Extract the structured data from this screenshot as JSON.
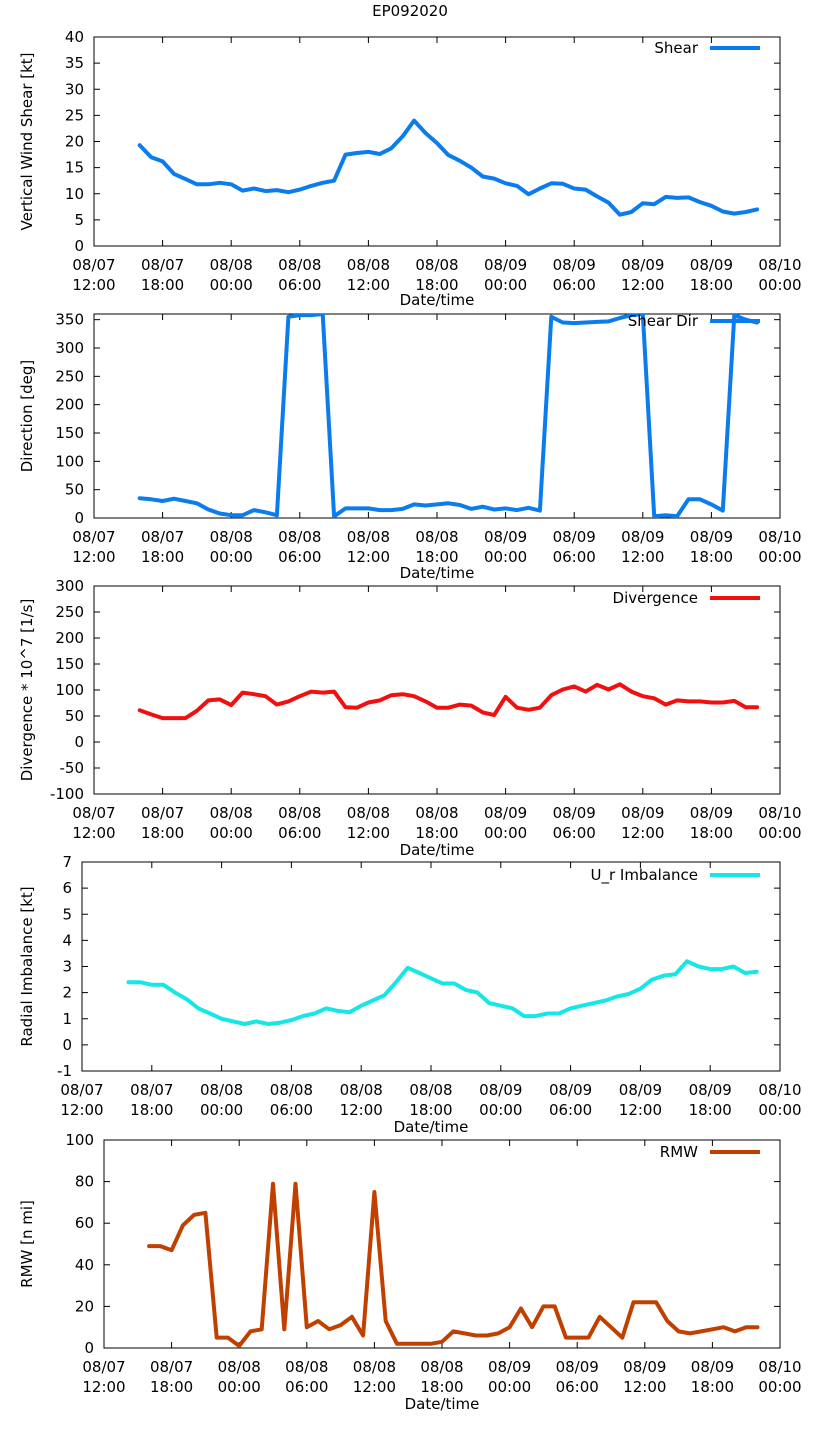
{
  "figure": {
    "title": "EP092020"
  },
  "chart_data": [
    {
      "type": "line",
      "title": "EP092020",
      "xlabel": "Date/time",
      "ylabel": "Vertical Wind Shear [kt]",
      "xlim": [
        0,
        60
      ],
      "ylim": [
        0,
        40
      ],
      "yticks": [
        0,
        5,
        10,
        15,
        20,
        25,
        30,
        35,
        40
      ],
      "xticks": [
        {
          "t": 0,
          "l1": "08/07",
          "l2": "12:00"
        },
        {
          "t": 6,
          "l1": "08/07",
          "l2": "18:00"
        },
        {
          "t": 12,
          "l1": "08/08",
          "l2": "00:00"
        },
        {
          "t": 18,
          "l1": "08/08",
          "l2": "06:00"
        },
        {
          "t": 24,
          "l1": "08/08",
          "l2": "12:00"
        },
        {
          "t": 30,
          "l1": "08/08",
          "l2": "18:00"
        },
        {
          "t": 36,
          "l1": "08/09",
          "l2": "00:00"
        },
        {
          "t": 42,
          "l1": "08/09",
          "l2": "06:00"
        },
        {
          "t": 48,
          "l1": "08/09",
          "l2": "12:00"
        },
        {
          "t": 54,
          "l1": "08/09",
          "l2": "18:00"
        },
        {
          "t": 60,
          "l1": "08/10",
          "l2": "00:00"
        }
      ],
      "legend": "top-right",
      "series": [
        {
          "name": "Shear",
          "color": "#0a7cee",
          "x": [
            4,
            5,
            6,
            7,
            8,
            9,
            10,
            11,
            12,
            13,
            14,
            15,
            16,
            17,
            18,
            19,
            20,
            21,
            22,
            23,
            24,
            25,
            26,
            27,
            28,
            29,
            30,
            31,
            32,
            33,
            34,
            35,
            36,
            37,
            38,
            39,
            40,
            41,
            42,
            43,
            44,
            45,
            46,
            47,
            48,
            49,
            50,
            51,
            52,
            53,
            54,
            55,
            56,
            57,
            58
          ],
          "y": [
            19.3,
            17.0,
            16.2,
            13.8,
            12.8,
            11.8,
            11.8,
            12.1,
            11.8,
            10.6,
            11.0,
            10.5,
            10.7,
            10.3,
            10.8,
            11.5,
            12.1,
            12.5,
            17.5,
            17.8,
            18.0,
            17.6,
            18.7,
            21.0,
            24.0,
            21.6,
            19.7,
            17.4,
            16.3,
            15.0,
            13.3,
            12.9,
            12.0,
            11.5,
            9.9,
            11.0,
            12.0,
            11.9,
            11.0,
            10.8,
            9.5,
            8.3,
            6.0,
            6.5,
            8.2,
            8.0,
            9.4,
            9.2,
            9.3,
            8.4,
            7.7,
            6.6,
            6.2,
            6.5,
            7.0
          ]
        }
      ]
    },
    {
      "type": "line",
      "xlabel": "Date/time",
      "ylabel": "Direction [deg]",
      "xlim": [
        0,
        60
      ],
      "ylim": [
        0,
        360
      ],
      "yticks": [
        0,
        50,
        100,
        150,
        200,
        250,
        300,
        350
      ],
      "xticks": [
        {
          "t": 0,
          "l1": "08/07",
          "l2": "12:00"
        },
        {
          "t": 6,
          "l1": "08/07",
          "l2": "18:00"
        },
        {
          "t": 12,
          "l1": "08/08",
          "l2": "00:00"
        },
        {
          "t": 18,
          "l1": "08/08",
          "l2": "06:00"
        },
        {
          "t": 24,
          "l1": "08/08",
          "l2": "12:00"
        },
        {
          "t": 30,
          "l1": "08/08",
          "l2": "18:00"
        },
        {
          "t": 36,
          "l1": "08/09",
          "l2": "00:00"
        },
        {
          "t": 42,
          "l1": "08/09",
          "l2": "06:00"
        },
        {
          "t": 48,
          "l1": "08/09",
          "l2": "12:00"
        },
        {
          "t": 54,
          "l1": "08/09",
          "l2": "18:00"
        },
        {
          "t": 60,
          "l1": "08/10",
          "l2": "00:00"
        }
      ],
      "legend": "top-right",
      "series": [
        {
          "name": "Shear Dir",
          "color": "#0a7cee",
          "x": [
            4,
            5,
            6,
            7,
            8,
            9,
            10,
            11,
            12,
            13,
            14,
            15,
            16,
            17,
            18,
            19,
            20,
            21,
            22,
            23,
            24,
            25,
            26,
            27,
            28,
            29,
            30,
            31,
            32,
            33,
            34,
            35,
            36,
            37,
            38,
            39,
            40,
            41,
            42,
            43,
            44,
            45,
            46,
            47,
            48,
            49,
            50,
            51,
            52,
            53,
            54,
            55,
            56,
            57,
            58
          ],
          "y": [
            35,
            33,
            30,
            34,
            30,
            26,
            15,
            8,
            5,
            5,
            14,
            10,
            5,
            355,
            358,
            358,
            360,
            3,
            17,
            17,
            17,
            14,
            14,
            16,
            24,
            22,
            24,
            26,
            23,
            16,
            20,
            15,
            17,
            14,
            18,
            13,
            355,
            345,
            344,
            345,
            346,
            347,
            353,
            358,
            360,
            3,
            5,
            3,
            33,
            33,
            24,
            13,
            358,
            350,
            345
          ]
        }
      ]
    },
    {
      "type": "line",
      "xlabel": "Date/time",
      "ylabel": "Divergence * 10^7 [1/s]",
      "xlim": [
        0,
        60
      ],
      "ylim": [
        -100,
        300
      ],
      "yticks": [
        -100,
        -50,
        0,
        50,
        100,
        150,
        200,
        250,
        300
      ],
      "xticks": [
        {
          "t": 0,
          "l1": "08/07",
          "l2": "12:00"
        },
        {
          "t": 6,
          "l1": "08/07",
          "l2": "18:00"
        },
        {
          "t": 12,
          "l1": "08/08",
          "l2": "00:00"
        },
        {
          "t": 18,
          "l1": "08/08",
          "l2": "06:00"
        },
        {
          "t": 24,
          "l1": "08/08",
          "l2": "12:00"
        },
        {
          "t": 30,
          "l1": "08/08",
          "l2": "18:00"
        },
        {
          "t": 36,
          "l1": "08/09",
          "l2": "00:00"
        },
        {
          "t": 42,
          "l1": "08/09",
          "l2": "06:00"
        },
        {
          "t": 48,
          "l1": "08/09",
          "l2": "12:00"
        },
        {
          "t": 54,
          "l1": "08/09",
          "l2": "18:00"
        },
        {
          "t": 60,
          "l1": "08/10",
          "l2": "00:00"
        }
      ],
      "legend": "top-right",
      "series": [
        {
          "name": "Divergence",
          "color": "#f01010",
          "x": [
            4,
            5,
            6,
            7,
            8,
            9,
            10,
            11,
            12,
            13,
            14,
            15,
            16,
            17,
            18,
            19,
            20,
            21,
            22,
            23,
            24,
            25,
            26,
            27,
            28,
            29,
            30,
            31,
            32,
            33,
            34,
            35,
            36,
            37,
            38,
            39,
            40,
            41,
            42,
            43,
            44,
            45,
            46,
            47,
            48,
            49,
            50,
            51,
            52,
            53,
            54,
            55,
            56,
            57,
            58
          ],
          "y": [
            61,
            53,
            46,
            46,
            46,
            60,
            80,
            82,
            71,
            95,
            92,
            88,
            72,
            78,
            88,
            97,
            95,
            97,
            67,
            66,
            76,
            80,
            90,
            92,
            88,
            78,
            66,
            66,
            72,
            70,
            57,
            52,
            87,
            66,
            62,
            66,
            90,
            101,
            107,
            97,
            110,
            101,
            111,
            97,
            88,
            84,
            72,
            80,
            78,
            78,
            76,
            76,
            79,
            67,
            67
          ]
        }
      ]
    },
    {
      "type": "line",
      "xlabel": "Date/time",
      "ylabel": "Radial Imbalance [kt]",
      "xlim": [
        0,
        60
      ],
      "ylim": [
        -1,
        7
      ],
      "yticks": [
        -1,
        0,
        1,
        2,
        3,
        4,
        5,
        6,
        7
      ],
      "xticks": [
        {
          "t": 0,
          "l1": "08/07",
          "l2": "12:00"
        },
        {
          "t": 6,
          "l1": "08/07",
          "l2": "18:00"
        },
        {
          "t": 12,
          "l1": "08/08",
          "l2": "00:00"
        },
        {
          "t": 18,
          "l1": "08/08",
          "l2": "06:00"
        },
        {
          "t": 24,
          "l1": "08/08",
          "l2": "12:00"
        },
        {
          "t": 30,
          "l1": "08/08",
          "l2": "18:00"
        },
        {
          "t": 36,
          "l1": "08/09",
          "l2": "00:00"
        },
        {
          "t": 42,
          "l1": "08/09",
          "l2": "06:00"
        },
        {
          "t": 48,
          "l1": "08/09",
          "l2": "12:00"
        },
        {
          "t": 54,
          "l1": "08/09",
          "l2": "18:00"
        },
        {
          "t": 60,
          "l1": "08/10",
          "l2": "00:00"
        }
      ],
      "legend": "top-right",
      "series": [
        {
          "name": "U_r Imbalance",
          "color": "#17e6e6",
          "x": [
            4,
            5,
            6,
            7,
            8,
            9,
            10,
            11,
            12,
            13,
            14,
            15,
            16,
            17,
            18,
            19,
            20,
            21,
            22,
            23,
            24,
            25,
            26,
            27,
            28,
            29,
            30,
            31,
            32,
            33,
            34,
            35,
            36,
            37,
            38,
            39,
            40,
            41,
            42,
            43,
            44,
            45,
            46,
            47,
            48,
            49,
            50,
            51,
            52,
            53,
            54,
            55,
            56,
            57,
            58
          ],
          "y": [
            2.4,
            2.4,
            2.3,
            2.3,
            2.0,
            1.75,
            1.4,
            1.2,
            1.0,
            0.9,
            0.8,
            0.9,
            0.8,
            0.85,
            0.95,
            1.1,
            1.2,
            1.4,
            1.3,
            1.25,
            1.5,
            1.7,
            1.9,
            2.4,
            2.95,
            2.75,
            2.55,
            2.35,
            2.35,
            2.1,
            2.0,
            1.6,
            1.5,
            1.4,
            1.1,
            1.1,
            1.2,
            1.2,
            1.4,
            1.5,
            1.6,
            1.7,
            1.85,
            1.95,
            2.15,
            2.5,
            2.65,
            2.7,
            3.2,
            3.0,
            2.9,
            2.9,
            3.0,
            2.75,
            2.8
          ]
        }
      ]
    },
    {
      "type": "line",
      "xlabel": "Date/time",
      "ylabel": "RMW [n mi]",
      "xlim": [
        0,
        60
      ],
      "ylim": [
        0,
        100
      ],
      "yticks": [
        0,
        20,
        40,
        60,
        80,
        100
      ],
      "xticks": [
        {
          "t": 0,
          "l1": "08/07",
          "l2": "12:00"
        },
        {
          "t": 6,
          "l1": "08/07",
          "l2": "18:00"
        },
        {
          "t": 12,
          "l1": "08/08",
          "l2": "00:00"
        },
        {
          "t": 18,
          "l1": "08/08",
          "l2": "06:00"
        },
        {
          "t": 24,
          "l1": "08/08",
          "l2": "12:00"
        },
        {
          "t": 30,
          "l1": "08/08",
          "l2": "18:00"
        },
        {
          "t": 36,
          "l1": "08/09",
          "l2": "00:00"
        },
        {
          "t": 42,
          "l1": "08/09",
          "l2": "06:00"
        },
        {
          "t": 48,
          "l1": "08/09",
          "l2": "12:00"
        },
        {
          "t": 54,
          "l1": "08/09",
          "l2": "18:00"
        },
        {
          "t": 60,
          "l1": "08/10",
          "l2": "00:00"
        }
      ],
      "legend": "top-right",
      "series": [
        {
          "name": "RMW",
          "color": "#c04000",
          "x": [
            4,
            5,
            6,
            7,
            8,
            9,
            10,
            11,
            12,
            13,
            14,
            15,
            16,
            17,
            18,
            19,
            20,
            21,
            22,
            23,
            24,
            25,
            26,
            27,
            28,
            29,
            30,
            31,
            32,
            33,
            34,
            35,
            36,
            37,
            38,
            39,
            40,
            41,
            42,
            43,
            44,
            45,
            46,
            47,
            48,
            49,
            50,
            51,
            52,
            53,
            54,
            55,
            56,
            57,
            58
          ],
          "y": [
            49,
            49,
            47,
            59,
            64,
            65,
            5,
            5,
            1,
            8,
            9,
            79,
            9,
            79,
            10,
            13,
            9,
            11,
            15,
            6,
            75,
            13,
            2,
            2,
            2,
            2,
            3,
            8,
            7,
            6,
            6,
            7,
            10,
            19,
            10,
            20,
            20,
            5,
            5,
            5,
            15,
            10,
            5,
            22,
            22,
            22,
            13,
            8,
            7,
            8,
            9,
            10,
            8,
            10,
            10
          ]
        }
      ]
    }
  ]
}
